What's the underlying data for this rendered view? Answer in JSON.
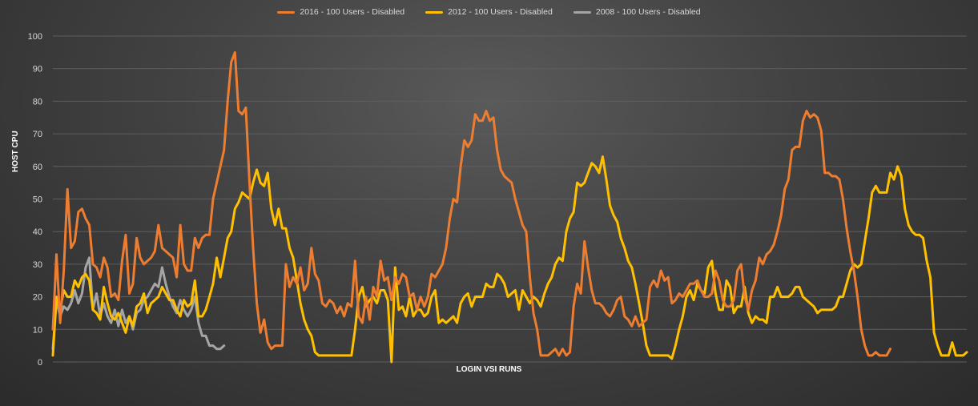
{
  "chart_data": {
    "type": "line",
    "title": "",
    "xlabel": "LOGIN VSI RUNS",
    "ylabel": "HOST CPU",
    "ylim": [
      0,
      100
    ],
    "yticks": [
      "0",
      "10",
      "20",
      "30",
      "40",
      "50",
      "60",
      "70",
      "80",
      "90",
      "100"
    ],
    "grid": true,
    "legend": "top-center",
    "series": [
      {
        "name": "2016 - 100 Users - Disabled",
        "color": "#ed7d31",
        "values": [
          10,
          33,
          12,
          28,
          53,
          35,
          37,
          46,
          47,
          44,
          42,
          30,
          29,
          26,
          32,
          29,
          20,
          21,
          19,
          31,
          39,
          21,
          24,
          38,
          32,
          30,
          31,
          32,
          34,
          42,
          35,
          34,
          33,
          32,
          26,
          42,
          30,
          28,
          28,
          38,
          35,
          38,
          39,
          39,
          50,
          55,
          60,
          65,
          80,
          92,
          95,
          77,
          76,
          78,
          55,
          35,
          18,
          9,
          13,
          6,
          4,
          5,
          5,
          5,
          30,
          23,
          26,
          24,
          29,
          22,
          24,
          35,
          27,
          25,
          18,
          17,
          19,
          18,
          15,
          17,
          14,
          18,
          17,
          31,
          14,
          12,
          20,
          13,
          23,
          20,
          31,
          25,
          26,
          19,
          26,
          24,
          27,
          26,
          20,
          21,
          16,
          20,
          17,
          20,
          27,
          26,
          28,
          30,
          35,
          44,
          50,
          49,
          60,
          68,
          66,
          68,
          76,
          74,
          74,
          77,
          74,
          75,
          65,
          59,
          57,
          56,
          55,
          50,
          46,
          42,
          40,
          26,
          15,
          10,
          2,
          2,
          2,
          3,
          4,
          2,
          4,
          2,
          3,
          17,
          24,
          21,
          37,
          29,
          22,
          18,
          18,
          17,
          15,
          14,
          16,
          19,
          20,
          14,
          13,
          11,
          14,
          11,
          12,
          13,
          23,
          25,
          23,
          28,
          25,
          26,
          18,
          19,
          21,
          20,
          22,
          24,
          24,
          25,
          22,
          20,
          20,
          21,
          28,
          25,
          19,
          17,
          17,
          19,
          28,
          30,
          20,
          16,
          22,
          25,
          32,
          30,
          33,
          34,
          36,
          40,
          45,
          53,
          56,
          65,
          66,
          66,
          74,
          77,
          75,
          76,
          75,
          71,
          58,
          58,
          57,
          57,
          56,
          50,
          41,
          34,
          28,
          20,
          10,
          5,
          2,
          2,
          3,
          2,
          2,
          2,
          4
        ],
        "x_start": 0
      },
      {
        "name": "2012 - 100 Users - Disabled",
        "color": "#ffc000",
        "values": [
          2,
          20,
          16,
          22,
          20,
          20,
          25,
          23,
          26,
          27,
          25,
          16,
          15,
          13,
          23,
          18,
          14,
          13,
          15,
          12,
          9,
          14,
          11,
          17,
          18,
          21,
          15,
          18,
          19,
          20,
          23,
          21,
          19,
          19,
          16,
          14,
          19,
          17,
          18,
          25,
          14,
          14,
          16,
          20,
          24,
          32,
          26,
          32,
          38,
          40,
          47,
          49,
          52,
          51,
          50,
          55,
          59,
          55,
          54,
          58,
          47,
          42,
          47,
          41,
          41,
          35,
          32,
          25,
          18,
          13,
          10,
          8,
          3,
          2,
          2,
          2,
          2,
          2,
          2,
          2,
          2,
          2,
          2,
          10,
          20,
          23,
          17,
          19,
          20,
          18,
          22,
          22,
          19,
          0,
          29,
          16,
          17,
          14,
          20,
          14,
          16,
          16,
          14,
          15,
          20,
          22,
          12,
          13,
          12,
          13,
          14,
          12,
          18,
          20,
          21,
          17,
          20,
          20,
          20,
          24,
          23,
          23,
          27,
          26,
          24,
          20,
          21,
          22,
          16,
          22,
          20,
          18,
          20,
          19,
          17,
          21,
          24,
          26,
          30,
          32,
          31,
          40,
          44,
          46,
          55,
          54,
          55,
          58,
          61,
          60,
          58,
          63,
          56,
          48,
          45,
          43,
          38,
          35,
          31,
          29,
          24,
          18,
          12,
          5,
          2,
          2,
          2,
          2,
          2,
          2,
          1,
          5,
          10,
          14,
          20,
          22,
          19,
          24,
          22,
          21,
          29,
          31,
          21,
          16,
          16,
          25,
          23,
          15,
          17,
          17,
          23,
          15,
          12,
          14,
          13,
          13,
          12,
          20,
          20,
          23,
          20,
          20,
          20,
          21,
          23,
          23,
          20,
          19,
          18,
          17,
          15,
          16,
          16,
          16,
          16,
          17,
          20,
          20,
          24,
          28,
          30,
          29,
          30,
          37,
          44,
          52,
          54,
          52,
          52,
          52,
          58,
          56,
          60,
          57,
          47,
          42,
          40,
          39,
          39,
          38,
          31,
          26,
          9,
          5,
          2,
          2,
          2,
          6,
          2,
          2,
          2,
          3
        ],
        "x_start": 0
      },
      {
        "name": "2008 - 100 Users - Disabled",
        "color": "#a5a5a5",
        "values": [
          4,
          19,
          14,
          17,
          16,
          18,
          22,
          18,
          21,
          29,
          32,
          16,
          21,
          14,
          18,
          14,
          12,
          16,
          11,
          16,
          12,
          14,
          10,
          15,
          16,
          19,
          20,
          22,
          24,
          23,
          29,
          24,
          20,
          17,
          15,
          19,
          16,
          14,
          16,
          20,
          12,
          8,
          8,
          5,
          5,
          4,
          4,
          5
        ],
        "x_start": 0
      }
    ]
  }
}
